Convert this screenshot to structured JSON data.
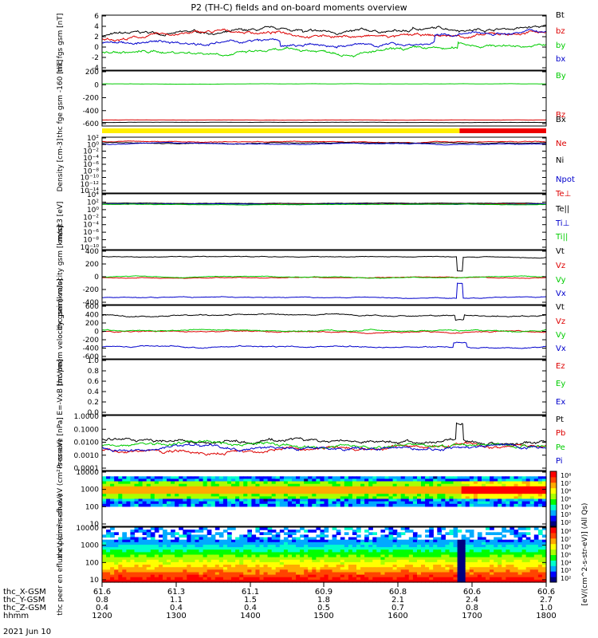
{
  "title": "P2 (TH-C) fields and on-board moments overview",
  "colorbar_label": "[eV/(cm^2-s-str-eV)] (All Qs)",
  "footer": {
    "rows": [
      {
        "label": "thc_X-GSM",
        "values": [
          "61.6",
          "61.3",
          "61.1",
          "60.9",
          "60.8",
          "60.6",
          "60.6"
        ]
      },
      {
        "label": "thc_Y-GSM",
        "values": [
          "0.8",
          "1.1",
          "1.5",
          "1.8",
          "2.1",
          "2.4",
          "2.7"
        ]
      },
      {
        "label": "thc_Z-GSM",
        "values": [
          "0.4",
          "0.4",
          "0.4",
          "0.5",
          "0.7",
          "0.8",
          "1.0"
        ]
      },
      {
        "label": "hhmm",
        "values": [
          "1200",
          "1300",
          "1400",
          "1500",
          "1600",
          "1700",
          "1800"
        ]
      }
    ],
    "date": "2021 Jun 10"
  },
  "chart_data": [
    {
      "type": "line",
      "ylabel": "thc fgs gsm [nT]",
      "ylim": [
        -6,
        6.5
      ],
      "ticks": [
        "6",
        "4",
        "2",
        "0",
        "-2",
        "-4"
      ],
      "series": [
        {
          "name": "Bt",
          "color": "#000000"
        },
        {
          "name": "bz",
          "color": "#dd0000"
        },
        {
          "name": "by",
          "color": "#00cc00"
        },
        {
          "name": "bx",
          "color": "#0000cc"
        }
      ]
    },
    {
      "type": "line",
      "ylabel": "thc fge gsm -160 [nT]",
      "ylim": [
        -700,
        220
      ],
      "ticks": [
        "200",
        "0",
        "-200",
        "-400",
        "-600"
      ],
      "series": [
        {
          "name": "By",
          "color": "#00cc00"
        },
        {
          "name": "Bz",
          "color": "#dd0000"
        },
        {
          "name": "Bx",
          "color": "#000000"
        }
      ]
    },
    {
      "type": "line",
      "ylabel": "Density [cm-3]",
      "log": true,
      "ticks": [
        "10²",
        "10⁰",
        "10⁻²",
        "10⁻⁴",
        "10⁻⁶",
        "10⁻⁸",
        "10⁻¹⁰",
        "10⁻¹²",
        "10⁻¹⁴"
      ],
      "series": [
        {
          "name": "Ne",
          "color": "#dd0000"
        },
        {
          "name": "Ni",
          "color": "#000000"
        },
        {
          "name": "Npot",
          "color": "#0000cc"
        }
      ]
    },
    {
      "type": "line",
      "ylabel": "moqt3 [eV]",
      "log": true,
      "ticks": [
        "10⁴",
        "10²",
        "10⁰",
        "10⁻²",
        "10⁻⁴",
        "10⁻⁶",
        "10⁻⁸",
        "10⁻¹⁰"
      ],
      "series": [
        {
          "name": "Te⊥",
          "color": "#dd0000"
        },
        {
          "name": "Te||",
          "color": "#000000"
        },
        {
          "name": "Ti⊥",
          "color": "#0000cc"
        },
        {
          "name": "Ti||",
          "color": "#00cc00"
        }
      ]
    },
    {
      "type": "line",
      "ylabel": "thc peim velocity gsm [km/s]",
      "ylim": [
        -420,
        420
      ],
      "ticks": [
        "400",
        "200",
        "0",
        "-200",
        "-400"
      ],
      "series": [
        {
          "name": "Vt",
          "color": "#000000"
        },
        {
          "name": "Vz",
          "color": "#dd0000"
        },
        {
          "name": "Vy",
          "color": "#00cc00"
        },
        {
          "name": "Vx",
          "color": "#0000cc"
        }
      ]
    },
    {
      "type": "line",
      "ylabel": "thc peem velocity gsm [km/s]",
      "ylim": [
        -600,
        600
      ],
      "ticks": [
        "600",
        "400",
        "200",
        "0",
        "-200",
        "-400",
        "-600"
      ],
      "series": [
        {
          "name": "Vt",
          "color": "#000000"
        },
        {
          "name": "Vz",
          "color": "#dd0000"
        },
        {
          "name": "Vy",
          "color": "#00cc00"
        },
        {
          "name": "Vx",
          "color": "#0000cc"
        }
      ]
    },
    {
      "type": "line",
      "ylabel": "E=-VxB [mV/m]",
      "ylim": [
        0,
        1
      ],
      "ticks": [
        "1.0",
        "0.8",
        "0.6",
        "0.4",
        "0.2",
        "0.0"
      ],
      "series": [
        {
          "name": "Ez",
          "color": "#dd0000"
        },
        {
          "name": "Ey",
          "color": "#00cc00"
        },
        {
          "name": "Ex",
          "color": "#0000cc"
        }
      ]
    },
    {
      "type": "line",
      "ylabel": "Pressure [nPa]",
      "log": true,
      "ticks": [
        "1.0000",
        "0.1000",
        "0.0100",
        "0.0010",
        "0.0001"
      ],
      "series": [
        {
          "name": "Pt",
          "color": "#000000"
        },
        {
          "name": "Pb",
          "color": "#dd0000"
        },
        {
          "name": "Pe",
          "color": "#00cc00"
        },
        {
          "name": "Pi",
          "color": "#0000cc"
        }
      ]
    },
    {
      "type": "heatmap",
      "ylabel": "thc peir en eflux eV (cm²-s-sr-eV)",
      "log": true,
      "ticks": [
        "10000",
        "1000",
        "100",
        "10"
      ],
      "colorbar_ticks": [
        "10⁸",
        "10⁷",
        "10⁶",
        "10⁵",
        "10⁴",
        "10³",
        "10²"
      ]
    },
    {
      "type": "heatmap",
      "ylabel": "thc peer en eflux eV (cm²-s-sr-eV)",
      "log": true,
      "ticks": [
        "10000",
        "1000",
        "100",
        "10"
      ],
      "colorbar_ticks": [
        "10⁸",
        "10⁷",
        "10⁶",
        "10⁵",
        "10⁴",
        "10³",
        "10²"
      ]
    }
  ]
}
